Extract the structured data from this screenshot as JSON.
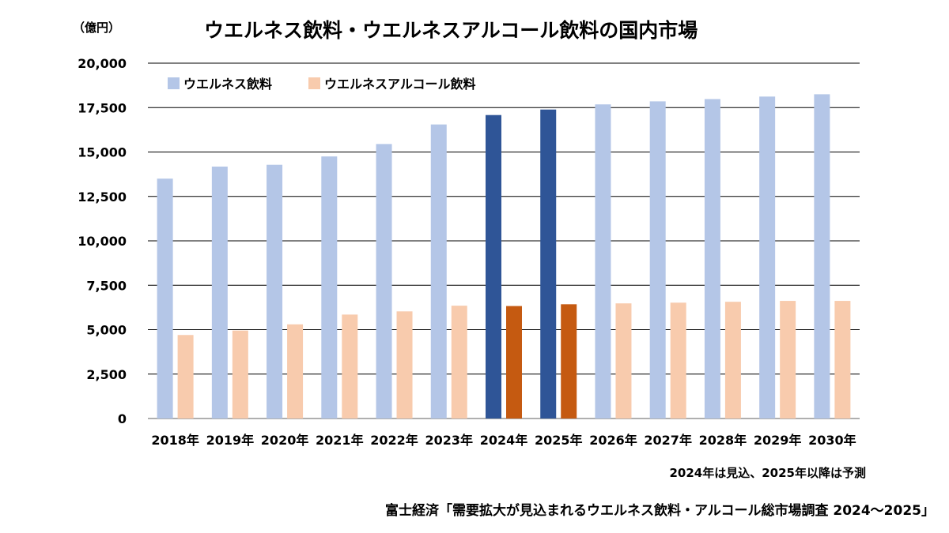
{
  "chart_data": {
    "type": "bar",
    "title": "ウエルネス飲料・ウエルネスアルコール飲料の国内市場",
    "unit_label": "（億円）",
    "categories": [
      "2018年",
      "2019年",
      "2020年",
      "2021年",
      "2022年",
      "2023年",
      "2024年",
      "2025年",
      "2026年",
      "2027年",
      "2028年",
      "2029年",
      "2030年"
    ],
    "series": [
      {
        "name": "ウエルネス飲料",
        "values": [
          13500,
          14180,
          14280,
          14750,
          15450,
          16550,
          17080,
          17390,
          17680,
          17850,
          17980,
          18120,
          18250
        ],
        "color": "#b4c6e7",
        "highlight_color": "#2f5597"
      },
      {
        "name": "ウエルネスアルコール飲料",
        "values": [
          4700,
          4950,
          5300,
          5850,
          6030,
          6350,
          6330,
          6430,
          6480,
          6520,
          6570,
          6620,
          6620
        ],
        "color": "#f8cbad",
        "highlight_color": "#c55a11"
      }
    ],
    "highlight_categories": [
      "2024年",
      "2025年"
    ],
    "y_ticks": [
      "0",
      "2,500",
      "5,000",
      "7,500",
      "10,000",
      "12,500",
      "15,000",
      "17,500",
      "20,000"
    ],
    "ylim": [
      0,
      20000
    ],
    "y_step": 2500,
    "grid": true,
    "legend_position": "top-left",
    "note": "2024年は見込、2025年以降は予測",
    "source": "富士経済「需要拡大が見込まれるウエルネス飲料・アルコール総市場調査 2024～2025」"
  }
}
